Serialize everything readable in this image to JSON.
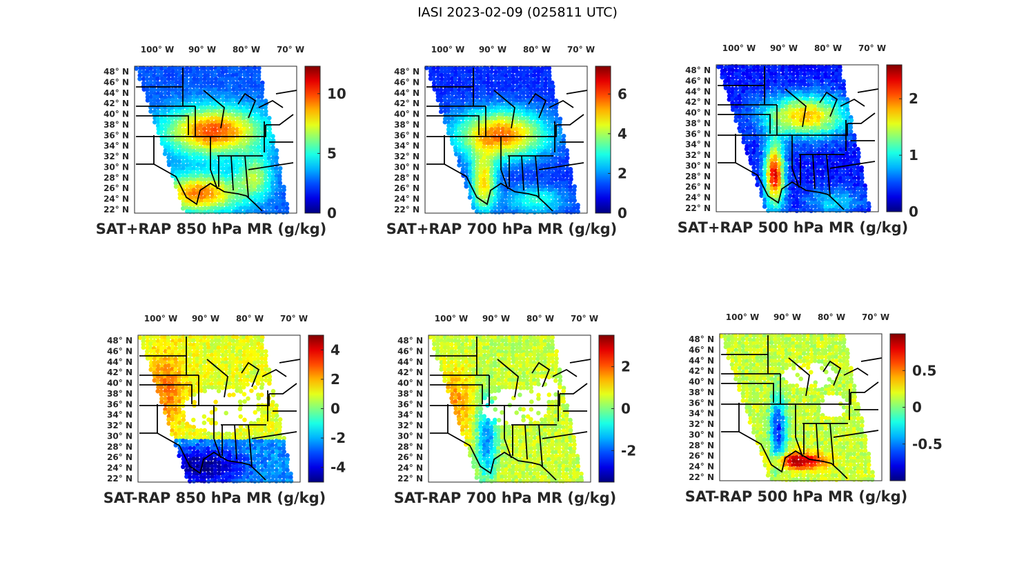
{
  "figure": {
    "title": "IASI 2023-02-09 (025811 UTC)",
    "lon_ticks": [
      "100° W",
      "90° W",
      "80° W",
      "70° W"
    ],
    "lat_ticks": [
      "48° N",
      "46° N",
      "44° N",
      "42° N",
      "40° N",
      "38° N",
      "36° N",
      "34° N",
      "32° N",
      "30° N",
      "28° N",
      "26° N",
      "24° N",
      "22° N"
    ]
  },
  "chart_data": [
    {
      "type": "heatmap",
      "title": "SAT+RAP 850 hPa MR (g/kg)",
      "colorbar": {
        "range": [
          0,
          12.3
        ],
        "ticks": [
          0,
          5,
          10
        ],
        "labels": [
          "0",
          "5",
          "10"
        ]
      }
    },
    {
      "type": "heatmap",
      "title": "SAT+RAP 700 hPa MR (g/kg)",
      "colorbar": {
        "range": [
          0,
          7.4
        ],
        "ticks": [
          0,
          2,
          4,
          6
        ],
        "labels": [
          "0",
          "2",
          "4",
          "6"
        ]
      }
    },
    {
      "type": "heatmap",
      "title": "SAT+RAP 500 hPa MR (g/kg)",
      "colorbar": {
        "range": [
          0,
          2.6
        ],
        "ticks": [
          0,
          1,
          2
        ],
        "labels": [
          "0",
          "1",
          "2"
        ]
      }
    },
    {
      "type": "heatmap",
      "title": "SAT-RAP 850 hPa MR (g/kg)",
      "colorbar": {
        "range": [
          -5,
          5
        ],
        "ticks": [
          -4,
          -2,
          0,
          2,
          4
        ],
        "labels": [
          "-4",
          "-2",
          "0",
          "2",
          "4"
        ]
      }
    },
    {
      "type": "heatmap",
      "title": "SAT-RAP 700 hPa MR (g/kg)",
      "colorbar": {
        "range": [
          -3.5,
          3.5
        ],
        "ticks": [
          -2,
          0,
          2
        ],
        "labels": [
          "-2",
          "0",
          "2"
        ]
      }
    },
    {
      "type": "heatmap",
      "title": "SAT-RAP 500 hPa MR (g/kg)",
      "colorbar": {
        "range": [
          -1,
          1
        ],
        "ticks": [
          -0.5,
          0,
          0.5
        ],
        "labels": [
          "-0.5",
          "0",
          "0.5"
        ]
      }
    }
  ]
}
